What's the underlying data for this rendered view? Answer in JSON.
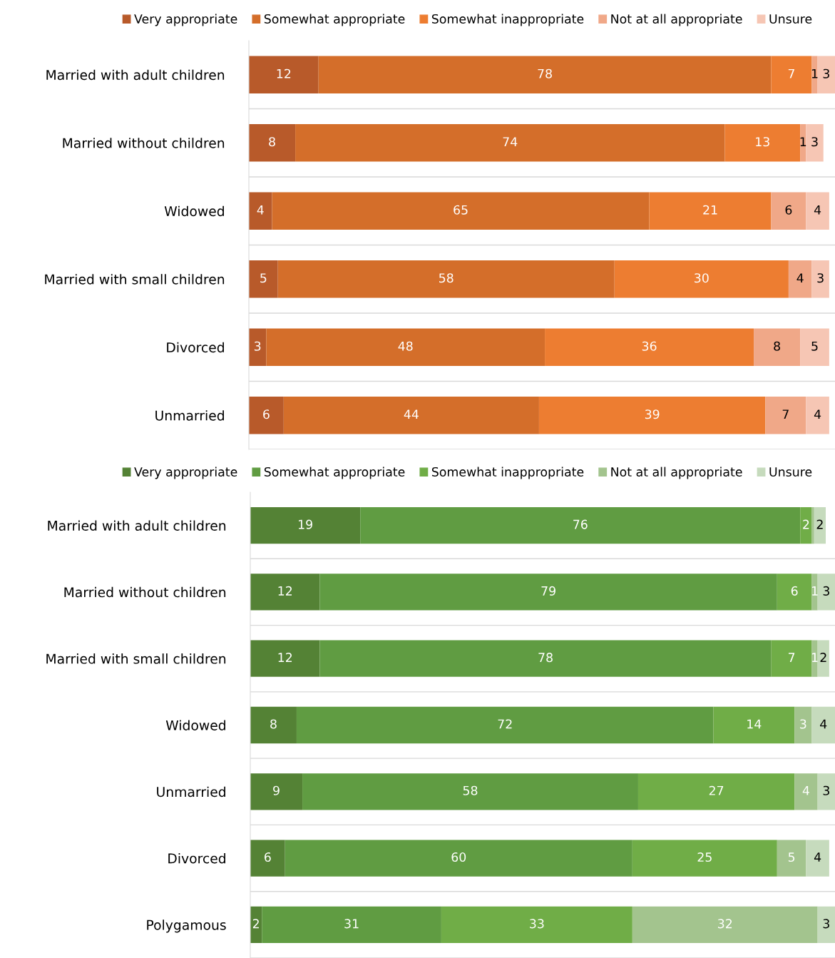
{
  "chart_data": [
    {
      "type": "bar",
      "orientation": "horizontal",
      "stacked": true,
      "data_labels": true,
      "legend": "top",
      "tick_labels": "y",
      "grid": false,
      "xlim": [
        0,
        101
      ],
      "categories": [
        "Married with adult children",
        "Married without children",
        "Widowed",
        "Married with small children",
        "Divorced",
        "Unmarried"
      ],
      "series": [
        {
          "name": "Very appropriate",
          "color": "#b85a2a",
          "values": [
            12,
            8,
            4,
            5,
            3,
            6
          ]
        },
        {
          "name": "Somewhat appropriate",
          "color": "#d46e2a",
          "values": [
            78,
            74,
            65,
            58,
            48,
            44
          ]
        },
        {
          "name": "Somewhat inappropriate",
          "color": "#ed7d31",
          "values": [
            7,
            13,
            21,
            30,
            36,
            39
          ]
        },
        {
          "name": "Not at all appropriate",
          "color": "#f0a888",
          "values": [
            1,
            1,
            6,
            4,
            8,
            7
          ]
        },
        {
          "name": "Unsure",
          "color": "#f6c6b4",
          "values": [
            3,
            3,
            4,
            3,
            5,
            4
          ]
        }
      ]
    },
    {
      "type": "bar",
      "orientation": "horizontal",
      "stacked": true,
      "data_labels": true,
      "legend": "top",
      "tick_labels": "y",
      "grid": false,
      "xlim": [
        0,
        101
      ],
      "categories": [
        "Married with adult children",
        "Married without children",
        "Married with small children",
        "Widowed",
        "Unmarried",
        "Divorced",
        "Polygamous"
      ],
      "series": [
        {
          "name": "Very appropriate",
          "color": "#548235",
          "values": [
            19,
            12,
            12,
            8,
            9,
            6,
            2
          ]
        },
        {
          "name": "Somewhat appropriate",
          "color": "#609c42",
          "values": [
            76,
            79,
            78,
            72,
            58,
            60,
            31
          ]
        },
        {
          "name": "Somewhat inappropriate",
          "color": "#70ad47",
          "values": [
            2,
            6,
            7,
            14,
            27,
            25,
            33
          ]
        },
        {
          "name": "Not at all appropriate",
          "color": "#a3c48e",
          "values": [
            0.4,
            1,
            1,
            3,
            4,
            5,
            32
          ],
          "value_labels": [
            null,
            "1",
            "1",
            "3",
            "4",
            "5",
            "32"
          ]
        },
        {
          "name": "Unsure",
          "color": "#c6dbbd",
          "values": [
            2,
            3,
            2,
            4,
            3,
            4,
            3
          ]
        }
      ]
    }
  ]
}
